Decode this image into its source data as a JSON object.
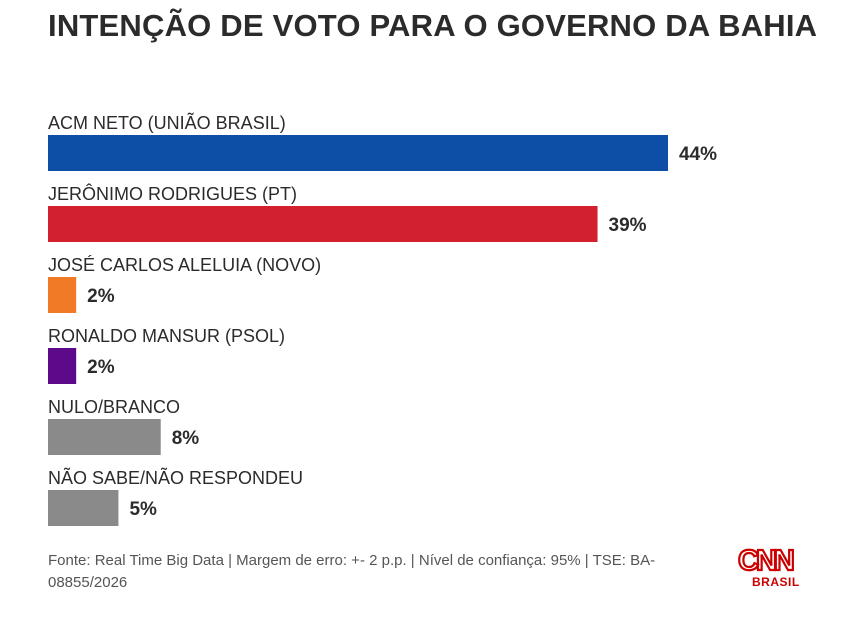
{
  "chart_data": {
    "type": "bar",
    "orientation": "horizontal",
    "title": "INTENÇÃO DE VOTO PARA O GOVERNO DA BAHIA",
    "categories": [
      "ACM NETO (UNIÃO BRASIL)",
      "JERÔNIMO RODRIGUES (PT)",
      "JOSÉ CARLOS ALELUIA (NOVO)",
      "RONALDO MANSUR (PSOL)",
      "NULO/BRANCO",
      "NÃO SABE/NÃO RESPONDEU"
    ],
    "values": [
      44,
      39,
      2,
      2,
      8,
      5
    ],
    "value_labels": [
      "44%",
      "39%",
      "2%",
      "2%",
      "8%",
      "5%"
    ],
    "colors": [
      "#0d4ea6",
      "#d2202e",
      "#f07a25",
      "#5c0a8a",
      "#8a8a8a",
      "#8a8a8a"
    ],
    "unit": "%",
    "xlim": [
      0,
      44
    ],
    "grid": false,
    "legend": "none"
  },
  "footer": {
    "source": "Fonte: Real Time Big Data | Margem de erro: +- 2 p.p. | Nível de confiança: 95% | TSE: BA-08855/2026"
  },
  "logo": {
    "name": "CNN",
    "sub": "BRASIL",
    "color": "#cc0000"
  }
}
